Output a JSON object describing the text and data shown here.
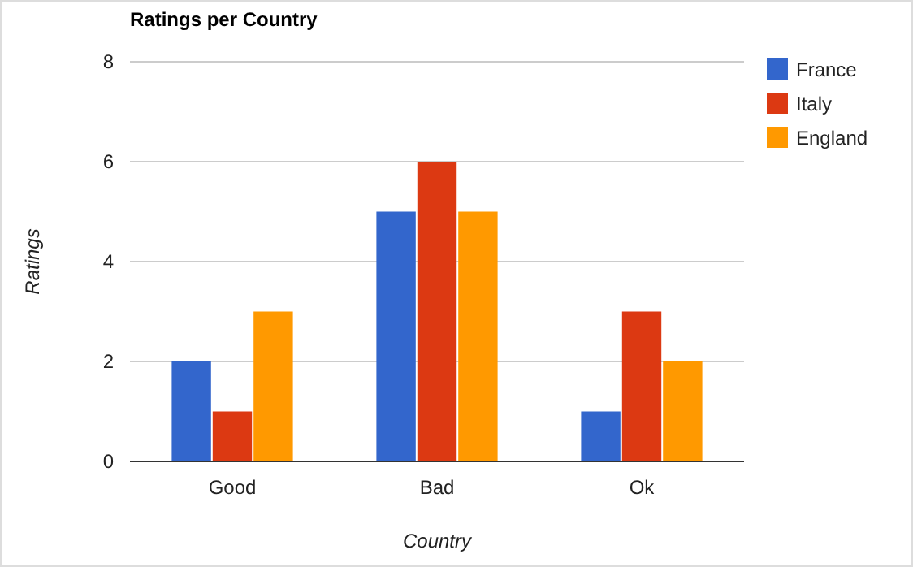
{
  "chart_data": {
    "type": "bar",
    "title": "Ratings per Country",
    "xlabel": "Country",
    "ylabel": "Ratings",
    "categories": [
      "Good",
      "Bad",
      "Ok"
    ],
    "series": [
      {
        "name": "France",
        "color": "#3366cc",
        "values": [
          2,
          5,
          1
        ]
      },
      {
        "name": "Italy",
        "color": "#dc3912",
        "values": [
          1,
          6,
          3
        ]
      },
      {
        "name": "England",
        "color": "#ff9900",
        "values": [
          3,
          5,
          2
        ]
      }
    ],
    "ylim": [
      0,
      8
    ],
    "yticks": [
      0,
      2,
      4,
      6,
      8
    ],
    "grid": "y",
    "legend": "right"
  }
}
